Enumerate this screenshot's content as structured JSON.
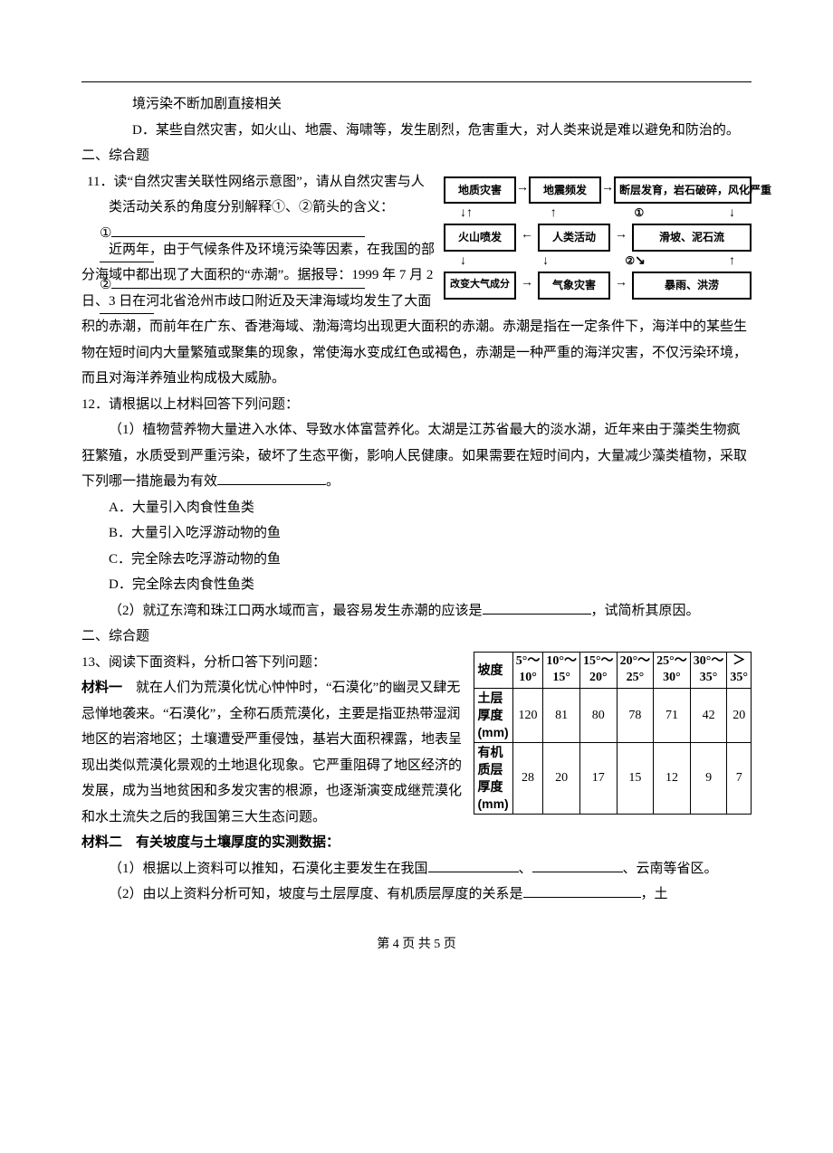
{
  "top": {
    "line1": "境污染不断加剧直接相关",
    "optD": "D．某些自然灾害，如火山、地震、海啸等，发生剧烈，危害重大，对人类来说是难以避免和防治的。"
  },
  "sec2a": {
    "title": "二、综合题",
    "q11_stem": "11．读“自然灾害关联性网络示意图”，请从自然灾害与人类活动关系的角度分别解释①、②箭头的含义：",
    "b1": "①",
    "b2": "②",
    "diagram": {
      "r1": [
        "地质灾害",
        "地震频发",
        "断层发育，岩石破碎，风化严重"
      ],
      "r2": [
        "火山喷发",
        "人类活动",
        "滑坡、泥石流"
      ],
      "r3": [
        "改变大气成分",
        "气象灾害",
        "暴雨、洪涝"
      ],
      "c1": "①",
      "c2": "②"
    },
    "para1": "近两年，由于气候条件及环境污染等因素，在我国的部分海域中都出现了大面积的“赤潮”。据报导：1999 年 7 月 2 日、3 日在河北省沧州市歧口附近及天津海域均发生了大面积的赤潮，而前年在广东、香港海域、渤海湾均出现更大面积的赤潮。赤潮是指在一定条件下，海洋中的某些生物在短时间内大量繁殖或聚集的现象，常使海水变成红色或褐色，赤潮是一种严重的海洋灾害，不仅污染环境，而且对海洋养殖业构成极大威胁。",
    "q12_stem": "12．请根据以上材料回答下列问题：",
    "q12_1_a": "（1）植物营养物大量进入水体、导致水体富营养化。太湖是江苏省最大的淡水湖，近年来由于藻类生物疯狂繁殖，水质受到严重污染，破坏了生态平衡，影响人民健康。如果需要在短时间内，大量减少藻类植物，采取下列哪一措施最为有效",
    "q12_1_b": "。",
    "optA": "A．大量引入肉食性鱼类",
    "optB": "B．大量引入吃浮游动物的鱼",
    "optC": "C．完全除去吃浮游动物的鱼",
    "optD": "D．完全除去肉食性鱼类",
    "q12_2_a": "（2）就辽东湾和珠江口两水域而言，最容易发生赤潮的应该是",
    "q12_2_b": "，试简析其原因。"
  },
  "sec2b": {
    "title": "二、综合题",
    "q13_stem": "13、阅读下面资料，分析口答下列问题：",
    "m1_label": "材料一",
    "m1_text": "　就在人们为荒漠化忧心忡忡时，“石漠化”的幽灵又肆无忌惮地袭来。“石漠化”，全称石质荒漠化，主要是指亚热带湿润地区的岩溶地区；土壤遭受严重侵蚀，基岩大面积裸露，地表呈现出类似荒漠化景观的土地退化现象。它严重阻碍了地区经济的发展，成为当地贫困和多发灾害的根源，也逐渐演变成继荒漠化和水土流失之后的我国第三大生态问题。",
    "m2_label": "材料二",
    "m2_text": "　有关坡度与土壤厚度的实测数据：",
    "table": {
      "row_headers": [
        "坡度",
        "土层\n厚度\n(mm)",
        "有机\n质层\n厚度\n(mm)"
      ],
      "col_headers": [
        "5°～\n10°",
        "10°～\n15°",
        "15°～\n20°",
        "20°～\n25°",
        "25°～\n30°",
        "30°～\n35°",
        "＞\n35°"
      ],
      "rows": [
        [
          120,
          81,
          80,
          78,
          71,
          42,
          20
        ],
        [
          28,
          20,
          17,
          15,
          12,
          9,
          7
        ]
      ]
    },
    "q1_a": "（1）根据以上资料可以推知，石漠化主要发生在我国",
    "q1_b": "、",
    "q1_c": "、云南等省区。",
    "q2_a": "（2）由以上资料分析可知，坡度与土层厚度、有机质层厚度的关系是",
    "q2_b": "，土"
  },
  "footer": {
    "text": "第 4 页 共 5 页"
  }
}
